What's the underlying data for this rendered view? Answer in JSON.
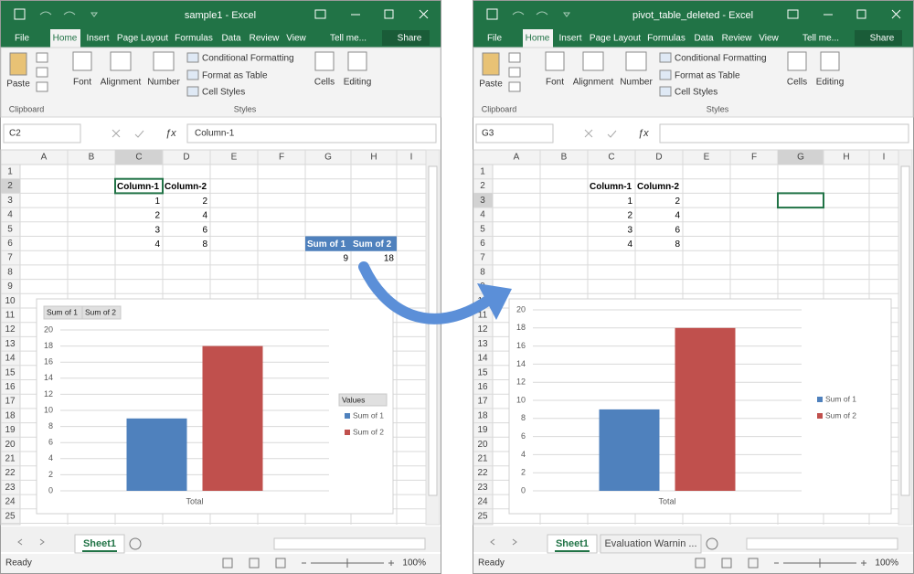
{
  "ribbon": {
    "tabs": [
      "File",
      "Home",
      "Insert",
      "Page Layout",
      "Formulas",
      "Data",
      "Review",
      "View",
      "Tell me...",
      "Share"
    ],
    "paste": "Paste",
    "clipboard": "Clipboard",
    "font": "Font",
    "alignment": "Alignment",
    "number": "Number",
    "conditional_formatting": "Conditional Formatting",
    "format_as_table": "Format as Table",
    "cell_styles": "Cell Styles",
    "styles": "Styles",
    "cells": "Cells",
    "editing": "Editing"
  },
  "columns": [
    "A",
    "B",
    "C",
    "D",
    "E",
    "F",
    "G",
    "H",
    "I"
  ],
  "rows": [
    1,
    2,
    3,
    4,
    5,
    6,
    7,
    8,
    9,
    10,
    11,
    12,
    13,
    14,
    15,
    16,
    17,
    18,
    19,
    20,
    21,
    22,
    23,
    24,
    25
  ],
  "status": {
    "ready": "Ready",
    "zoom": "100%"
  },
  "windows": [
    {
      "title": "sample1 - Excel",
      "name_box": "C2",
      "formula": "Column-1",
      "table": {
        "header": [
          "Column-1",
          "Column-2"
        ],
        "rows": [
          [
            1,
            2
          ],
          [
            2,
            4
          ],
          [
            3,
            6
          ],
          [
            4,
            8
          ]
        ]
      },
      "pivot": {
        "headers": [
          "Sum of 1",
          "Sum of 2"
        ],
        "values": [
          9,
          18
        ]
      },
      "chart": {
        "type": "bar",
        "categories": [
          "Total"
        ],
        "series": [
          {
            "name": "Sum of 1",
            "color": "#4f81bd",
            "values": [
              9
            ]
          },
          {
            "name": "Sum of 2",
            "color": "#c0504d",
            "values": [
              18
            ]
          }
        ],
        "ylim": [
          0,
          20
        ],
        "yticks": [
          0,
          2,
          4,
          6,
          8,
          10,
          12,
          14,
          16,
          18,
          20
        ],
        "grid": true,
        "field_buttons": [
          "Sum of 1",
          "Sum of 2"
        ],
        "legend_title": "Values"
      },
      "sheet_tabs": [
        "Sheet1"
      ]
    },
    {
      "title": "pivot_table_deleted - Excel",
      "name_box": "G3",
      "formula": "",
      "table": {
        "header": [
          "Column-1",
          "Column-2"
        ],
        "rows": [
          [
            1,
            2
          ],
          [
            2,
            4
          ],
          [
            3,
            6
          ],
          [
            4,
            8
          ]
        ]
      },
      "chart": {
        "type": "bar",
        "categories": [
          "Total"
        ],
        "series": [
          {
            "name": "Sum of 1",
            "color": "#4f81bd",
            "values": [
              9
            ]
          },
          {
            "name": "Sum of 2",
            "color": "#c0504d",
            "values": [
              18
            ]
          }
        ],
        "ylim": [
          0,
          20
        ],
        "yticks": [
          0,
          2,
          4,
          6,
          8,
          10,
          12,
          14,
          16,
          18,
          20
        ],
        "grid": true
      },
      "sheet_tabs": [
        "Sheet1",
        "Evaluation Warnin ..."
      ]
    }
  ]
}
